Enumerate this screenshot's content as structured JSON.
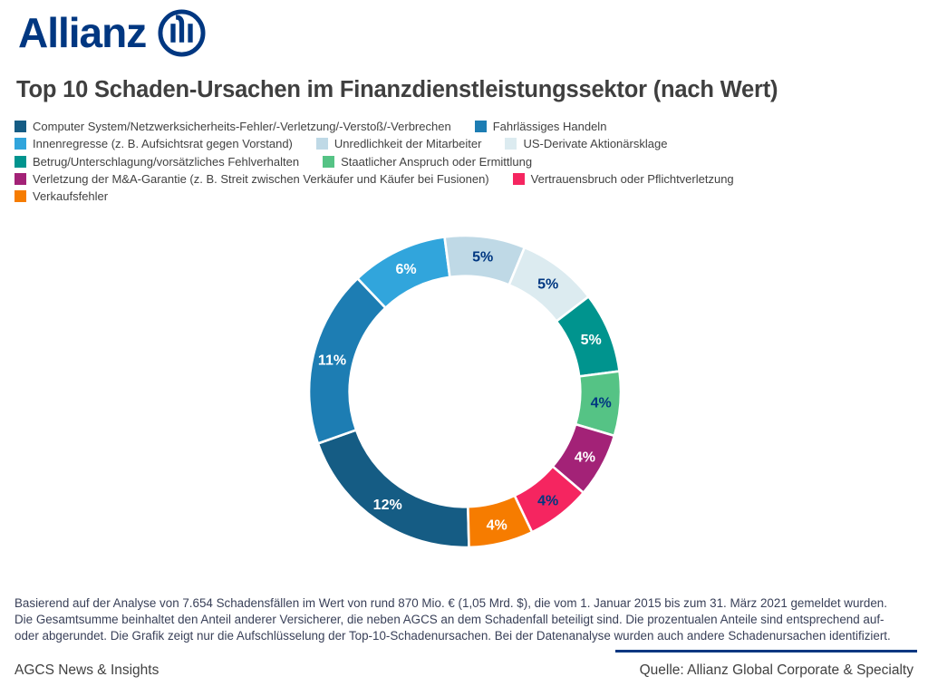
{
  "header": {
    "brand": "Allianz",
    "title": "Top 10 Schaden-Ursachen im Finanzdienstleistungssektor (nach Wert)"
  },
  "colors": {
    "brand_navy": "#003781",
    "title_gray": "#3f3f3f",
    "legend_text": "#414141",
    "footnote_text": "#394058",
    "segment_border": "#ffffff"
  },
  "chart_data": {
    "type": "pie",
    "subtype": "donut",
    "title": "Top 10 Schaden-Ursachen im Finanzdienstleistungssektor (nach Wert)",
    "unit": "%",
    "legend_position": "top",
    "categories": [
      "Computer System/Netzwerksicherheits-Fehler/-Verletzung/-Verstoß/-Verbrechen",
      "Fahrlässiges Handeln",
      "Innenregresse (z. B. Aufsichtsrat gegen Vorstand)",
      "Unredlichkeit der Mitarbeiter",
      "US-Derivate Aktionärsklage",
      "Betrug/Unterschlagung/vorsätzliches Fehlverhalten",
      "Staatlicher Anspruch oder Ermittlung",
      "Verletzung der M&A-Garantie (z. B. Streit zwischen Verkäufer und Käufer bei Fusionen)",
      "Vertrauensbruch oder Pflichtverletzung",
      "Verkaufsfehler"
    ],
    "values": [
      12,
      11,
      6,
      5,
      5,
      5,
      4,
      4,
      4,
      4
    ],
    "segment_labels": [
      "12%",
      "11%",
      "6%",
      "5%",
      "5%",
      "5%",
      "4%",
      "4%",
      "4%",
      "4%"
    ],
    "colors": [
      "#155C84",
      "#1D7DB3",
      "#31A5DC",
      "#BFD9E6",
      "#DCEBF0",
      "#00948E",
      "#55C385",
      "#A32277",
      "#F52560",
      "#F67C00"
    ],
    "segment_label_colors": [
      "#FFFFFF",
      "#FFFFFF",
      "#FFFFFF",
      "#003781",
      "#003781",
      "#FFFFFF",
      "#003781",
      "#FFFFFF",
      "#003781",
      "#FFFFFF"
    ],
    "start_angle_clockwise_from_top_deg": 178.5,
    "direction": "clockwise",
    "inner_radius_ratio": 0.74
  },
  "legend_rows": [
    [
      0,
      1
    ],
    [
      2,
      3,
      4
    ],
    [
      5,
      6
    ],
    [
      7,
      8
    ],
    [
      9
    ]
  ],
  "footnote": {
    "lines": [
      "Basierend auf der Analyse von 7.654 Schadensfällen im Wert von rund 870 Mio. € (1,05 Mrd. $), die vom 1. Januar 2015 bis zum 31. März 2021 gemeldet wurden.",
      "Die Gesamtsumme beinhaltet den Anteil anderer Versicherer, die neben AGCS an dem Schadenfall beteiligt sind. Die prozentualen Anteile sind entsprechend auf-",
      "oder abgerundet. Die Grafik zeigt nur die Aufschlüsselung der Top-10-Schadenursachen. Bei der Datenanalyse wurden auch andere Schadenursachen identifiziert."
    ]
  },
  "footer": {
    "left": "AGCS News & Insights",
    "source": "Quelle: Allianz Global Corporate & Specialty"
  }
}
